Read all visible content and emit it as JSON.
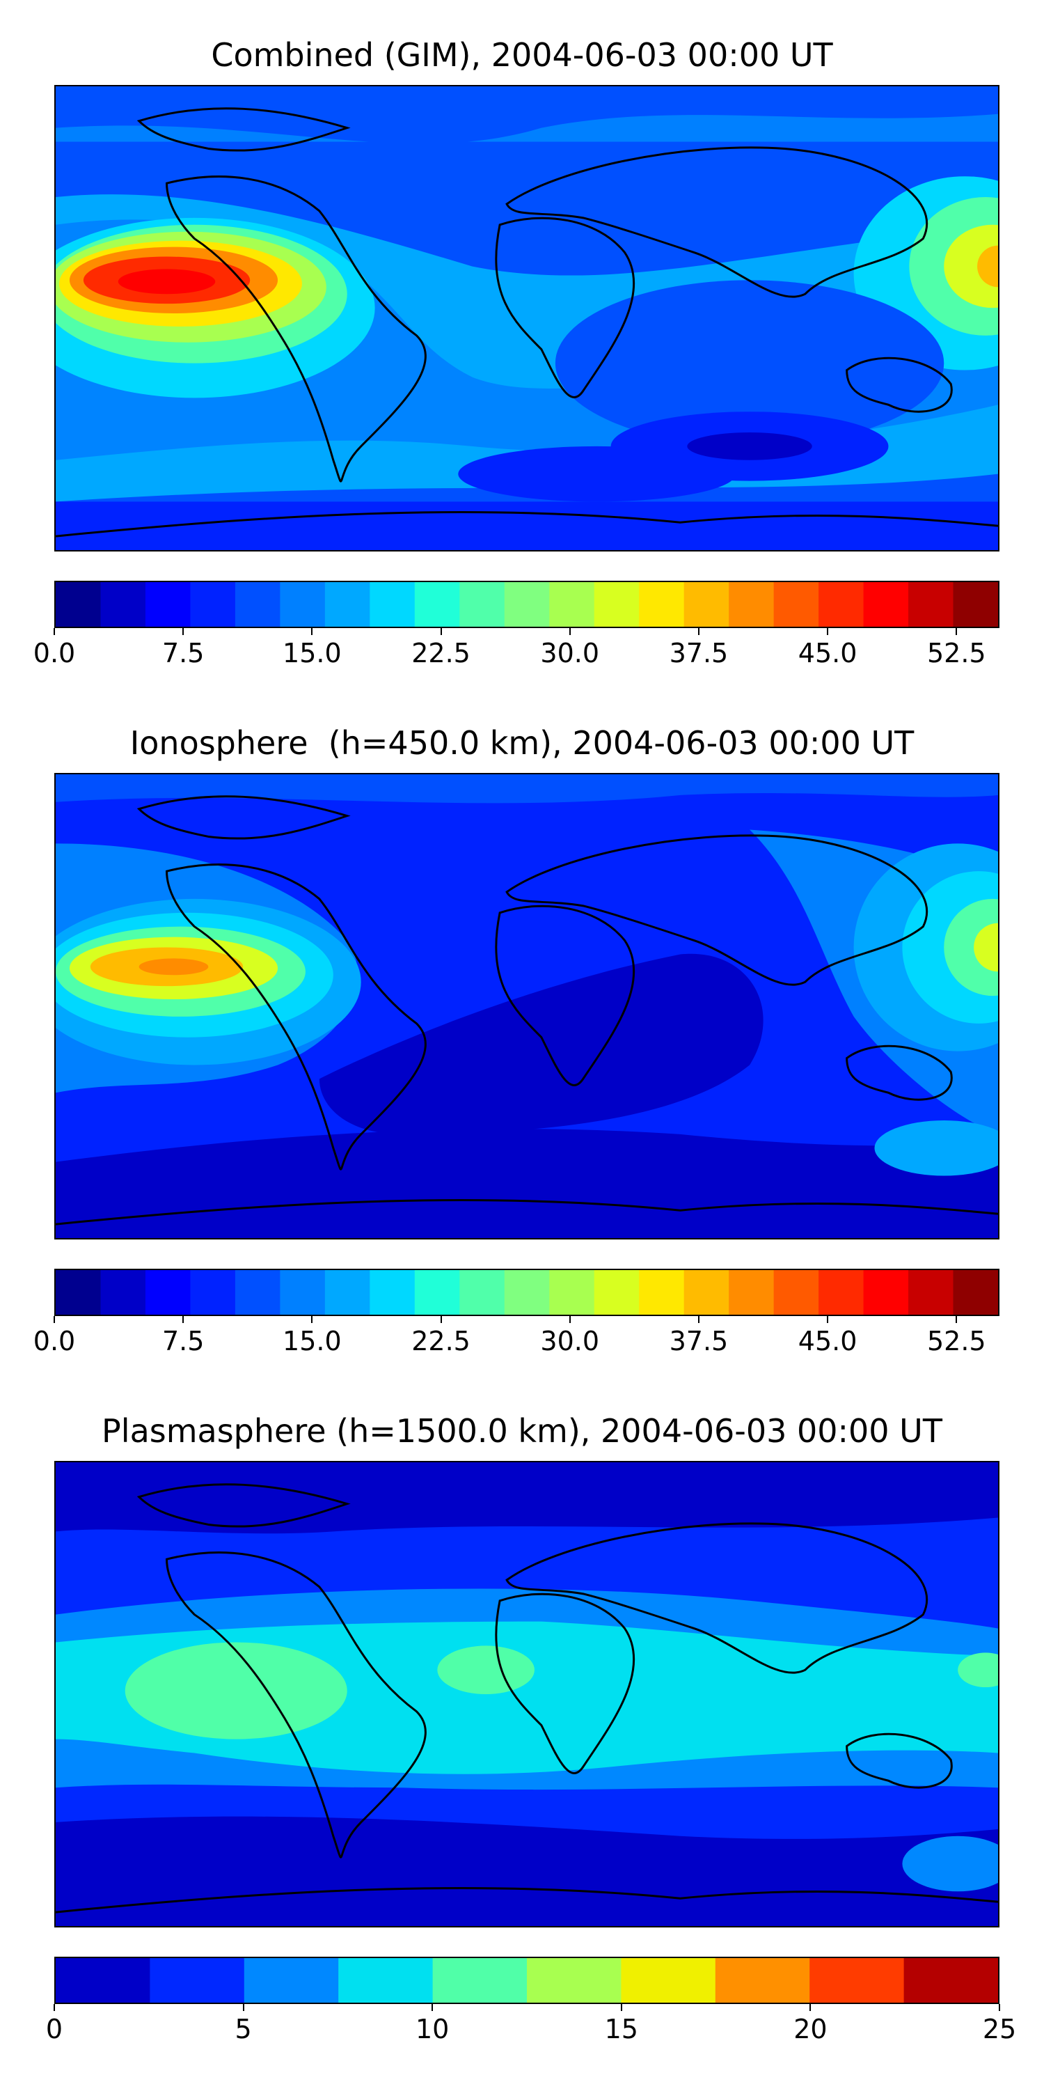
{
  "chart_data": [
    {
      "type": "heatmap",
      "title": "Combined (GIM), 2004-06-03 00:00 UT",
      "colorbar": {
        "min": 0.0,
        "max": 55.0,
        "step": 2.5,
        "ticks": [
          "0.0",
          "7.5",
          "15.0",
          "22.5",
          "30.0",
          "37.5",
          "45.0",
          "52.5"
        ],
        "tick_values": [
          0,
          7.5,
          15,
          22.5,
          30,
          37.5,
          45,
          52.5
        ],
        "colors": [
          "#00008f",
          "#0000c8",
          "#0000ff",
          "#0022ff",
          "#0050ff",
          "#0080ff",
          "#00a8ff",
          "#00d8ff",
          "#20ffd8",
          "#50ffaa",
          "#80ff80",
          "#a8ff50",
          "#d8ff20",
          "#ffe800",
          "#ffbb00",
          "#ff8c00",
          "#ff5a00",
          "#ff2a00",
          "#ff0000",
          "#c80000",
          "#8f0000"
        ]
      },
      "features": {
        "max_region": "central Pacific near equator (~45-50)",
        "min_region": "South Indian / South Atlantic (~5-10)"
      },
      "basemap": "world coastlines"
    },
    {
      "type": "heatmap",
      "title": "Ionosphere  (h=450.0 km), 2004-06-03 00:00 UT",
      "colorbar": {
        "min": 0.0,
        "max": 55.0,
        "step": 2.5,
        "ticks": [
          "0.0",
          "7.5",
          "15.0",
          "22.5",
          "30.0",
          "37.5",
          "45.0",
          "52.5"
        ],
        "tick_values": [
          0,
          7.5,
          15,
          22.5,
          30,
          37.5,
          45,
          52.5
        ],
        "colors": [
          "#00008f",
          "#0000c8",
          "#0000ff",
          "#0022ff",
          "#0050ff",
          "#0080ff",
          "#00a8ff",
          "#00d8ff",
          "#20ffd8",
          "#50ffaa",
          "#80ff80",
          "#a8ff50",
          "#d8ff20",
          "#ffe800",
          "#ffbb00",
          "#ff8c00",
          "#ff5a00",
          "#ff2a00",
          "#ff0000",
          "#c80000",
          "#8f0000"
        ]
      },
      "features": {
        "max_region": "central Pacific near equator (~40)",
        "min_region": "South Atlantic / Indian Ocean (~0-5)"
      },
      "basemap": "world coastlines"
    },
    {
      "type": "heatmap",
      "title": "Plasmasphere (h=1500.0 km), 2004-06-03 00:00 UT",
      "colorbar": {
        "min": 0,
        "max": 25,
        "step": 2.5,
        "ticks": [
          "0",
          "5",
          "10",
          "15",
          "20",
          "25"
        ],
        "tick_values": [
          0,
          5,
          10,
          15,
          20,
          25
        ],
        "colors": [
          "#0000c8",
          "#0028ff",
          "#0088ff",
          "#00e0f0",
          "#50ffa8",
          "#a8ff50",
          "#f0f000",
          "#ff9000",
          "#ff3c00",
          "#b40000"
        ]
      },
      "features": {
        "max_region": "equatorial band (~10-12.5)",
        "min_region": "high latitudes (~0-2.5)"
      },
      "basemap": "world coastlines"
    }
  ]
}
